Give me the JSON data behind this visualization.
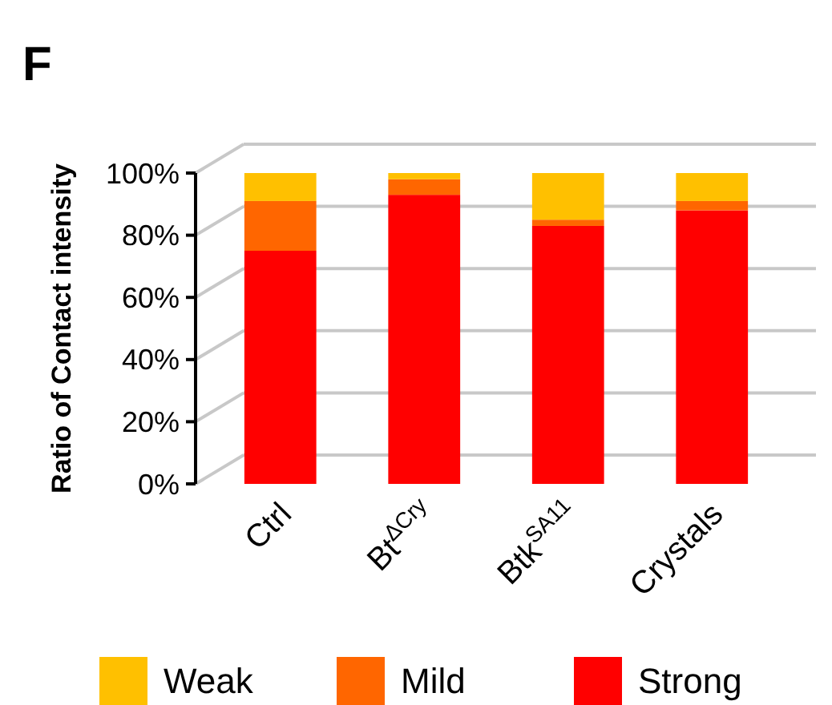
{
  "chart_data": {
    "type": "bar",
    "title": "F",
    "ylabel": "Ratio of Contact intensity",
    "categories": [
      "Ctrl",
      "Bt$^{ΔCry}$",
      "Btk$^{SA11}$",
      "Crystals"
    ],
    "stacked": true,
    "series": [
      {
        "name": "Strong",
        "color": "#ff0000",
        "values": [
          75,
          93,
          83,
          88
        ]
      },
      {
        "name": "Mild",
        "color": "#ff6600",
        "values": [
          16,
          5,
          2,
          3
        ]
      },
      {
        "name": "Weak",
        "color": "#ffc000",
        "values": [
          9,
          2,
          15,
          9
        ]
      }
    ],
    "ylim": [
      0,
      100
    ],
    "yticks": [
      {
        "value": 0,
        "label": "0%"
      },
      {
        "value": 20,
        "label": "20%"
      },
      {
        "value": 40,
        "label": "40%"
      },
      {
        "value": 60,
        "label": "60%"
      },
      {
        "value": 80,
        "label": "80%"
      },
      {
        "value": 100,
        "label": "100%"
      }
    ],
    "grid": "y",
    "legend": "bottom"
  }
}
